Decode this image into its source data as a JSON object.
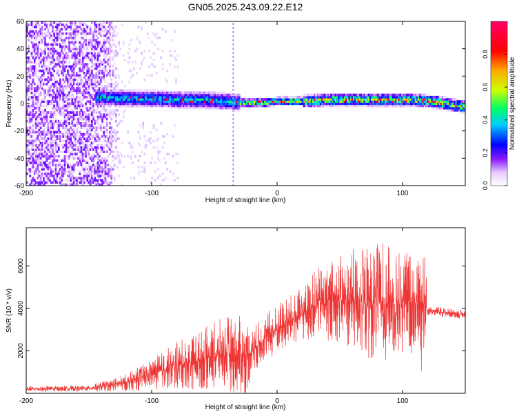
{
  "title": "GN05.2025.243.09.22.E12",
  "chart_data": [
    {
      "type": "heatmap",
      "title": "GN05.2025.243.09.22.E12",
      "xlabel": "Height of straight line (km)",
      "ylabel": "Frequency (Hz)",
      "xlim": [
        -200,
        150
      ],
      "ylim": [
        -60,
        60
      ],
      "x_ticks": [
        -200,
        -100,
        0,
        100
      ],
      "y_ticks": [
        -60,
        -40,
        -20,
        0,
        20,
        40,
        60
      ],
      "x_tick_labels": [
        "-200",
        "-100",
        "0",
        "100"
      ],
      "y_tick_labels": [
        "-60",
        "-40",
        "-20",
        "0",
        "20",
        "40",
        "60"
      ],
      "colorbar": {
        "label": "Normalized spectral amplitude",
        "range": [
          0,
          1
        ],
        "ticks": [
          0.0,
          0.2,
          0.4,
          0.6,
          0.8
        ],
        "tick_labels": [
          "0.0",
          "0.2",
          "0.4",
          "0.6",
          "0.8"
        ],
        "colors": [
          "#ffffff",
          "#e6ccff",
          "#8c1aff",
          "#0000ff",
          "#00ccff",
          "#00ff66",
          "#ccff00",
          "#ffaa00",
          "#ff0000",
          "#ff0066"
        ]
      },
      "ridge": {
        "x": [
          -140,
          -120,
          -100,
          -80,
          -60,
          -40,
          -30,
          -20,
          -10,
          0,
          10,
          20,
          40,
          60,
          80,
          90,
          100,
          110,
          120,
          130,
          140,
          150
        ],
        "frequency": [
          4,
          3,
          3,
          2,
          2,
          1,
          0,
          0,
          0,
          1,
          1,
          1,
          2,
          2,
          2,
          2,
          2,
          2,
          1,
          0,
          -2,
          -3
        ]
      },
      "noise_region_x": [
        -200,
        -120
      ],
      "dashed_vertical_x": -35
    },
    {
      "type": "line",
      "xlabel": "Height of straight line (km)",
      "ylabel": "SNR (10 * v/v)",
      "xlim": [
        -200,
        150
      ],
      "ylim": [
        0,
        7800
      ],
      "x_ticks": [
        -200,
        -100,
        0,
        100
      ],
      "y_ticks": [
        2000,
        4000,
        6000
      ],
      "x_tick_labels": [
        "-200",
        "-100",
        "0",
        "100"
      ],
      "y_tick_labels": [
        "2000",
        "4000",
        "6000"
      ],
      "line_color": "#ee3333",
      "envelope": {
        "x": [
          -200,
          -150,
          -120,
          -100,
          -80,
          -60,
          -40,
          -25,
          -20,
          -10,
          0,
          20,
          30,
          50,
          70,
          90,
          110,
          118,
          120,
          150
        ],
        "mean": [
          200,
          230,
          500,
          900,
          1300,
          1600,
          1900,
          1700,
          2000,
          2600,
          3000,
          3700,
          4200,
          4400,
          4300,
          4300,
          4300,
          4300,
          3900,
          3700
        ],
        "spread": [
          80,
          80,
          250,
          450,
          700,
          900,
          1100,
          1200,
          700,
          700,
          800,
          800,
          1000,
          1300,
          1700,
          1700,
          1500,
          1500,
          150,
          120
        ]
      }
    }
  ]
}
